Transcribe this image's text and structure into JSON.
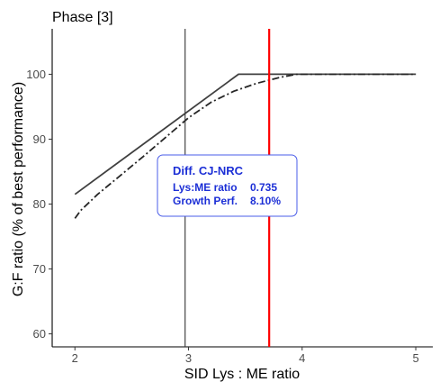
{
  "chart_data": {
    "type": "line",
    "title": "Phase [3]",
    "xlabel": "SID Lys : ME ratio",
    "ylabel": "G:F ratio (% of best performance)",
    "xlim": [
      1.8,
      5.15
    ],
    "ylim": [
      58,
      107
    ],
    "x_ticks": [
      2,
      3,
      4,
      5
    ],
    "y_ticks": [
      60,
      70,
      80,
      90,
      100
    ],
    "grid": false,
    "series": [
      {
        "line_style": "solid",
        "color": "#404040",
        "x": [
          2.0,
          3.44,
          5.0
        ],
        "y": [
          81.5,
          100,
          100
        ]
      },
      {
        "line_style": "dashdot",
        "color": "#262626",
        "x": [
          2.0,
          2.05,
          2.2,
          2.4,
          2.6,
          2.8,
          3.0,
          3.2,
          3.4,
          3.6,
          3.8,
          3.95,
          4.1,
          4.3,
          4.5,
          5.0
        ],
        "y": [
          77.8,
          79.0,
          81.5,
          84.4,
          87.3,
          90.3,
          93.3,
          95.7,
          97.4,
          98.6,
          99.5,
          100,
          100,
          100,
          100,
          100
        ]
      }
    ],
    "vlines": [
      {
        "x": 2.97,
        "color": "#333333"
      },
      {
        "x": 3.71,
        "color": "#ff0000"
      }
    ],
    "annotation": {
      "color": "#1c2fd6",
      "border_color": "#4a5ce8",
      "heading": "Diff. CJ-NRC",
      "rows": [
        {
          "label": "Lys:ME ratio",
          "value": "0.735"
        },
        {
          "label": "Growth Perf.",
          "value": "8.10%"
        }
      ]
    }
  }
}
